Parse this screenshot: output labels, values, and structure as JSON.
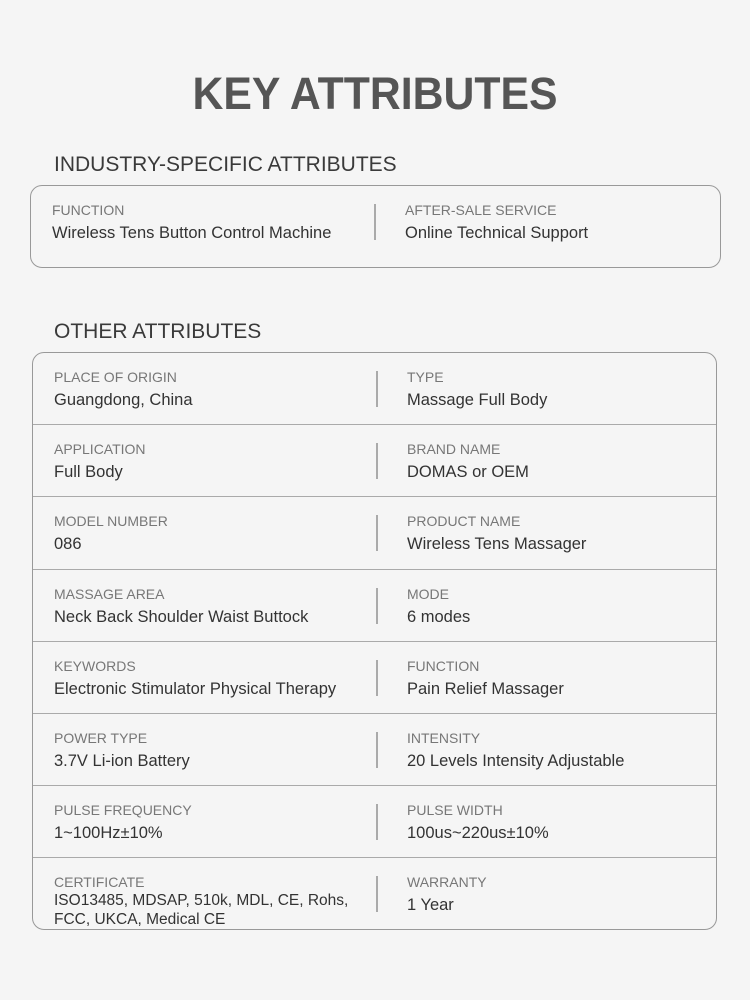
{
  "title": "KEY ATTRIBUTES",
  "industry": {
    "heading": "INDUSTRY-SPECIFIC ATTRIBUTES",
    "rows": [
      {
        "left": {
          "label": "FUNCTION",
          "value": "Wireless Tens Button Control Machine"
        },
        "right": {
          "label": "AFTER-SALE SERVICE",
          "value": "Online Technical Support"
        }
      }
    ]
  },
  "other": {
    "heading": "OTHER ATTRIBUTES",
    "rows": [
      {
        "left": {
          "label": "PLACE OF ORIGIN",
          "value": "Guangdong, China"
        },
        "right": {
          "label": "TYPE",
          "value": "Massage Full Body"
        }
      },
      {
        "left": {
          "label": "APPLICATION",
          "value": "Full Body"
        },
        "right": {
          "label": "BRAND NAME",
          "value": "DOMAS or OEM"
        }
      },
      {
        "left": {
          "label": "MODEL NUMBER",
          "value": "086"
        },
        "right": {
          "label": "PRODUCT NAME",
          "value": "Wireless Tens Massager"
        }
      },
      {
        "left": {
          "label": "MASSAGE AREA",
          "value": "Neck Back Shoulder Waist Buttock"
        },
        "right": {
          "label": "MODE",
          "value": "6 modes"
        }
      },
      {
        "left": {
          "label": "KEYWORDS",
          "value": "Electronic Stimulator Physical Therapy"
        },
        "right": {
          "label": "FUNCTION",
          "value": "Pain Relief Massager"
        }
      },
      {
        "left": {
          "label": "POWER TYPE",
          "value": "3.7V Li-ion Battery"
        },
        "right": {
          "label": "INTENSITY",
          "value": "20 Levels Intensity Adjustable"
        }
      },
      {
        "left": {
          "label": "PULSE FREQUENCY",
          "value": "1~100Hz±10%"
        },
        "right": {
          "label": "PULSE WIDTH",
          "value": "100us~220us±10%"
        }
      },
      {
        "left": {
          "label": "CERTIFICATE",
          "value": "ISO13485, MDSAP, 510k, MDL, CE, Rohs, FCC, UKCA, Medical CE"
        },
        "right": {
          "label": "WARRANTY",
          "value": "1 Year"
        }
      }
    ]
  }
}
